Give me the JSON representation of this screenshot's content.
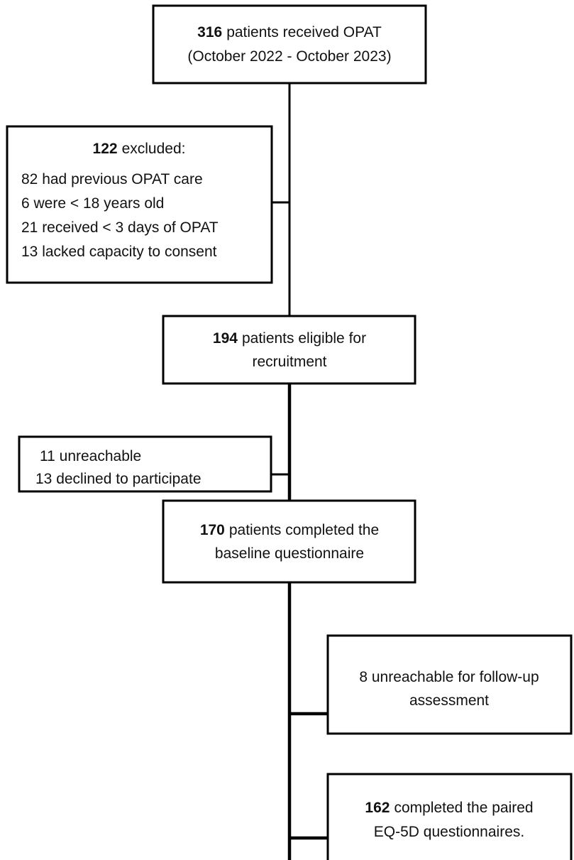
{
  "nodes": [
    {
      "count": "316",
      "head": "patients received OPAT",
      "lines": [
        "(October 2022 - October 2023)"
      ]
    },
    {
      "count": "122",
      "head": "excluded:",
      "lines": [
        "82 had previous OPAT care",
        "6 were < 18 years old",
        "21 received < 3 days of OPAT",
        "13 lacked capacity to consent"
      ]
    },
    {
      "count": "194",
      "head": "patients eligible for",
      "lines": [
        "recruitment"
      ]
    },
    {
      "lines": [
        "11 unreachable",
        "13 declined to participate"
      ]
    },
    {
      "count": "170",
      "head": "patients completed the",
      "lines": [
        "baseline questionnaire"
      ]
    },
    {
      "lines": [
        "8 unreachable for follow-up",
        "assessment"
      ]
    },
    {
      "count": "162",
      "head": "completed the paired",
      "lines": [
        "EQ-5D questionnaires."
      ]
    }
  ]
}
